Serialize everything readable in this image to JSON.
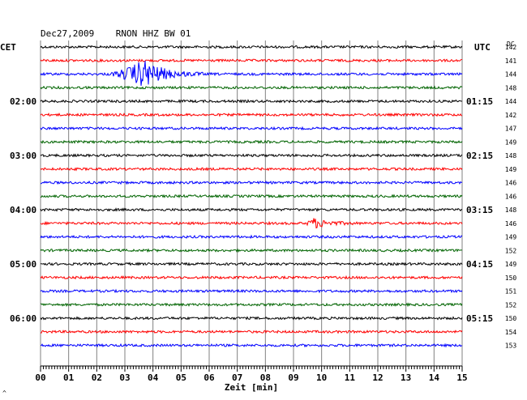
{
  "header": {
    "title": "Dec27,2009    RNON HHZ BW 01"
  },
  "left_axis": {
    "label": "CET",
    "ticks": [
      "02:00",
      "03:00",
      "04:00",
      "05:00",
      "06:00"
    ]
  },
  "right_axis": {
    "label": "UTC",
    "ticks": [
      "01:15",
      "02:15",
      "03:15",
      "04:15",
      "05:15"
    ],
    "dc_label": "DC"
  },
  "x_axis": {
    "label": "Zeit [min]",
    "ticks": [
      "00",
      "01",
      "02",
      "03",
      "04",
      "05",
      "06",
      "07",
      "08",
      "09",
      "10",
      "11",
      "12",
      "13",
      "14",
      "15"
    ]
  },
  "footer_mark": "^",
  "colors": {
    "black": "#000000",
    "red": "#ff0000",
    "blue": "#0000ff",
    "green": "#006400",
    "grid": "#808080"
  },
  "chart_data": {
    "type": "line",
    "title": "Dec27,2009    RNON HHZ BW 01",
    "xlabel": "Zeit [min]",
    "xlim": [
      0,
      15
    ],
    "trace_count": 23,
    "traces_per_hour": 4,
    "trace_colors": [
      "black",
      "red",
      "blue",
      "green"
    ],
    "dc_values": [
      142,
      141,
      144,
      148,
      144,
      142,
      147,
      149,
      148,
      149,
      146,
      146,
      148,
      146,
      149,
      152,
      149,
      150,
      151,
      152,
      150,
      154,
      153
    ],
    "events": [
      {
        "trace": 2,
        "start_min": 2.3,
        "peak_min": 3.7,
        "end_min": 5.8,
        "amplitude": "large"
      },
      {
        "trace": 13,
        "start_min": 9.4,
        "peak_min": 9.7,
        "end_min": 11.3,
        "amplitude": "moderate"
      }
    ]
  }
}
